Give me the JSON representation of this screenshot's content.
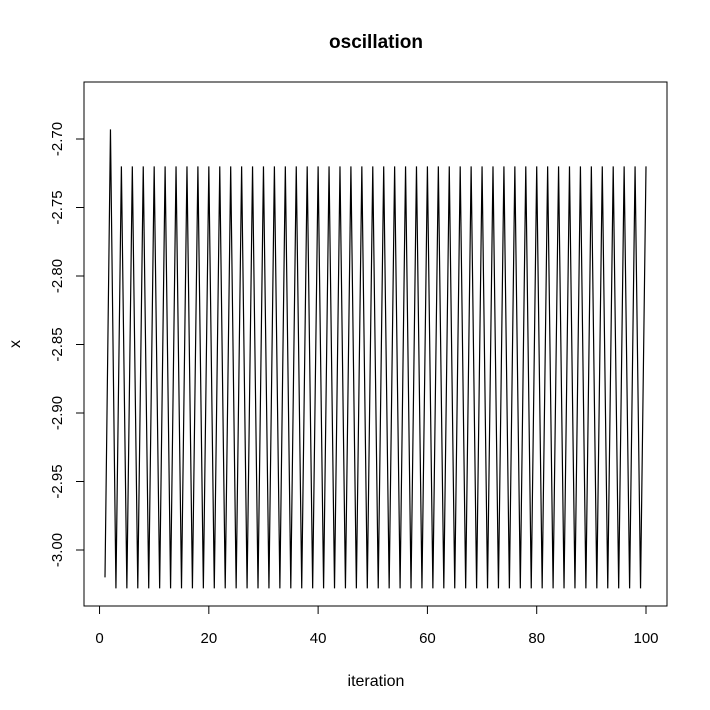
{
  "chart_data": {
    "type": "line",
    "title": "oscillation",
    "xlabel": "iteration",
    "ylabel": "x",
    "xlim": [
      1,
      100
    ],
    "ylim": [
      -3.03,
      -2.68
    ],
    "xticks": [
      0,
      20,
      40,
      60,
      80,
      100
    ],
    "xtick_labels": [
      "0",
      "20",
      "40",
      "60",
      "80",
      "100"
    ],
    "yticks": [
      -3.0,
      -2.95,
      -2.9,
      -2.85,
      -2.8,
      -2.75,
      -2.7
    ],
    "ytick_labels": [
      "-3.00",
      "-2.95",
      "-2.90",
      "-2.85",
      "-2.80",
      "-2.75",
      "-2.70"
    ],
    "grid": false,
    "line_color": "#000000",
    "series": [
      {
        "x": [
          1,
          2,
          3,
          4,
          5,
          6,
          7,
          8,
          9,
          10,
          11,
          12,
          13,
          14,
          15,
          16,
          17,
          18,
          19,
          20,
          21,
          22,
          23,
          24,
          25,
          26,
          27,
          28,
          29,
          30,
          31,
          32,
          33,
          34,
          35,
          36,
          37,
          38,
          39,
          40,
          41,
          42,
          43,
          44,
          45,
          46,
          47,
          48,
          49,
          50,
          51,
          52,
          53,
          54,
          55,
          56,
          57,
          58,
          59,
          60,
          61,
          62,
          63,
          64,
          65,
          66,
          67,
          68,
          69,
          70,
          71,
          72,
          73,
          74,
          75,
          76,
          77,
          78,
          79,
          80,
          81,
          82,
          83,
          84,
          85,
          86,
          87,
          88,
          89,
          90,
          91,
          92,
          93,
          94,
          95,
          96,
          97,
          98,
          99,
          100
        ],
        "values": [
          -3.02,
          -2.693,
          -3.028,
          -2.72,
          -3.028,
          -2.72,
          -3.028,
          -2.72,
          -3.028,
          -2.72,
          -3.028,
          -2.72,
          -3.028,
          -2.72,
          -3.028,
          -2.72,
          -3.028,
          -2.72,
          -3.028,
          -2.72,
          -3.028,
          -2.72,
          -3.028,
          -2.72,
          -3.028,
          -2.72,
          -3.028,
          -2.72,
          -3.028,
          -2.72,
          -3.028,
          -2.72,
          -3.028,
          -2.72,
          -3.028,
          -2.72,
          -3.028,
          -2.72,
          -3.028,
          -2.72,
          -3.028,
          -2.72,
          -3.028,
          -2.72,
          -3.028,
          -2.72,
          -3.028,
          -2.72,
          -3.028,
          -2.72,
          -3.028,
          -2.72,
          -3.028,
          -2.72,
          -3.028,
          -2.72,
          -3.028,
          -2.72,
          -3.028,
          -2.72,
          -3.028,
          -2.72,
          -3.028,
          -2.72,
          -3.028,
          -2.72,
          -3.028,
          -2.72,
          -3.028,
          -2.72,
          -3.028,
          -2.72,
          -3.028,
          -2.72,
          -3.028,
          -2.72,
          -3.028,
          -2.72,
          -3.028,
          -2.72,
          -3.028,
          -2.72,
          -3.028,
          -2.72,
          -3.028,
          -2.72,
          -3.028,
          -2.72,
          -3.028,
          -2.72,
          -3.028,
          -2.72,
          -3.028,
          -2.72,
          -3.028,
          -2.72,
          -3.028,
          -2.72,
          -3.028,
          -2.72
        ]
      }
    ]
  }
}
